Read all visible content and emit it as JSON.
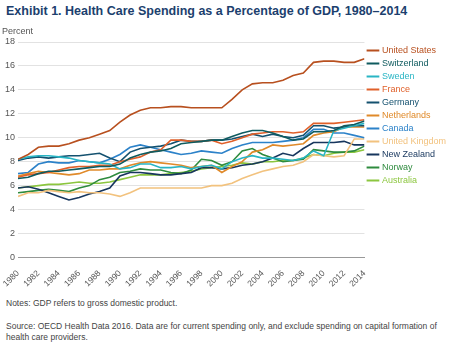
{
  "chart_data": {
    "type": "line",
    "title": "Exhibit 1. Health Care Spending as a Percentage of GDP, 1980–2014",
    "y_label": "Percent",
    "notes": "Notes: GDP refers to gross domestic product.",
    "source": "Source: OECD Health Data 2016. Data are for current spending only, and exclude spending on capital formation of health care providers.",
    "x": [
      1980,
      1981,
      1982,
      1983,
      1984,
      1985,
      1986,
      1987,
      1988,
      1989,
      1990,
      1991,
      1992,
      1993,
      1994,
      1995,
      1996,
      1997,
      1998,
      1999,
      2000,
      2001,
      2002,
      2003,
      2004,
      2005,
      2006,
      2007,
      2008,
      2009,
      2010,
      2011,
      2012,
      2013,
      2014
    ],
    "xlim": [
      1980,
      2014
    ],
    "xticks": [
      1980,
      1982,
      1984,
      1986,
      1988,
      1990,
      1992,
      1994,
      1996,
      1998,
      2000,
      2002,
      2004,
      2006,
      2008,
      2010,
      2012,
      2014
    ],
    "ylim": [
      0,
      18
    ],
    "yticks": [
      0,
      2,
      4,
      6,
      8,
      10,
      12,
      14,
      16,
      18
    ],
    "grid": true,
    "legend": "right",
    "series": [
      {
        "name": "United States",
        "color": "#b8501f",
        "values": [
          8.2,
          8.6,
          9.2,
          9.3,
          9.3,
          9.5,
          9.8,
          10.0,
          10.3,
          10.6,
          11.3,
          11.9,
          12.3,
          12.5,
          12.5,
          12.6,
          12.6,
          12.5,
          12.5,
          12.5,
          12.5,
          13.2,
          14.0,
          14.5,
          14.6,
          14.6,
          14.8,
          15.2,
          15.4,
          16.3,
          16.4,
          16.4,
          16.3,
          16.3,
          16.6
        ]
      },
      {
        "name": "Switzerland",
        "color": "#0f5b5f",
        "values": [
          6.6,
          6.7,
          7.0,
          7.2,
          7.2,
          7.3,
          7.4,
          7.5,
          7.6,
          7.6,
          7.8,
          8.3,
          8.6,
          8.8,
          8.9,
          9.1,
          9.5,
          9.6,
          9.7,
          9.8,
          9.8,
          10.1,
          10.4,
          10.6,
          10.6,
          10.4,
          10.1,
          9.8,
          9.9,
          10.5,
          10.5,
          10.6,
          11.0,
          11.1,
          11.4
        ]
      },
      {
        "name": "Sweden",
        "color": "#29b5c4",
        "values": [
          8.2,
          8.4,
          8.5,
          8.5,
          8.4,
          8.3,
          8.1,
          8.0,
          7.9,
          7.8,
          7.4,
          7.5,
          7.8,
          7.8,
          7.5,
          7.5,
          7.6,
          7.4,
          7.6,
          7.7,
          7.4,
          8.0,
          8.3,
          8.5,
          8.3,
          8.3,
          8.2,
          8.1,
          8.3,
          8.9,
          8.5,
          10.6,
          10.8,
          11.0,
          11.2
        ]
      },
      {
        "name": "France",
        "color": "#e0602a",
        "values": [
          6.7,
          6.9,
          7.0,
          7.1,
          7.3,
          7.5,
          7.6,
          7.6,
          7.7,
          7.7,
          8.0,
          8.2,
          8.4,
          8.8,
          9.0,
          9.8,
          9.8,
          9.7,
          9.7,
          9.8,
          9.5,
          9.7,
          10.0,
          10.3,
          10.4,
          10.5,
          10.5,
          10.4,
          10.5,
          11.2,
          11.2,
          11.2,
          11.3,
          11.4,
          11.5
        ]
      },
      {
        "name": "Germany",
        "color": "#14516f",
        "values": [
          8.1,
          8.3,
          8.4,
          8.3,
          8.4,
          8.5,
          8.5,
          8.6,
          8.7,
          8.3,
          8.0,
          8.8,
          9.1,
          9.2,
          9.3,
          9.5,
          9.8,
          9.7,
          9.7,
          9.8,
          9.8,
          9.9,
          10.1,
          10.3,
          10.1,
          10.3,
          10.1,
          10.0,
          10.2,
          11.0,
          11.0,
          10.8,
          10.9,
          11.0,
          11.0
        ]
      },
      {
        "name": "Netherlands",
        "color": "#e08a2a",
        "values": [
          6.8,
          7.0,
          7.2,
          7.1,
          7.0,
          6.9,
          7.0,
          7.3,
          7.3,
          7.4,
          7.4,
          7.7,
          7.9,
          8.0,
          7.9,
          7.8,
          7.7,
          7.5,
          7.6,
          7.7,
          7.1,
          7.6,
          8.0,
          8.8,
          9.0,
          9.4,
          9.3,
          9.4,
          9.5,
          10.2,
          10.4,
          10.5,
          10.9,
          10.9,
          10.9
        ]
      },
      {
        "name": "Canada",
        "color": "#2c82c9",
        "values": [
          7.0,
          7.1,
          7.8,
          8.0,
          7.9,
          7.9,
          8.1,
          8.0,
          7.9,
          8.2,
          8.6,
          9.2,
          9.4,
          9.2,
          9.0,
          8.8,
          8.6,
          8.7,
          8.9,
          8.8,
          8.7,
          9.1,
          9.4,
          9.6,
          9.6,
          9.6,
          9.7,
          9.8,
          10.0,
          10.7,
          10.7,
          10.4,
          10.4,
          10.2,
          10.0
        ]
      },
      {
        "name": "United Kingdom",
        "color": "#f2c27e",
        "values": [
          5.1,
          5.4,
          5.4,
          5.6,
          5.5,
          5.4,
          5.5,
          5.4,
          5.4,
          5.3,
          5.1,
          5.4,
          5.8,
          5.8,
          5.8,
          5.8,
          5.8,
          5.8,
          5.8,
          6.0,
          6.0,
          6.2,
          6.6,
          6.9,
          7.2,
          7.4,
          7.6,
          7.7,
          8.0,
          8.6,
          8.5,
          8.4,
          8.5,
          9.9,
          9.9
        ]
      },
      {
        "name": "New Zealand",
        "color": "#17365d",
        "values": [
          5.8,
          5.9,
          5.7,
          5.4,
          5.1,
          4.8,
          5.0,
          5.3,
          5.5,
          5.8,
          6.8,
          7.1,
          7.1,
          7.0,
          6.9,
          6.9,
          7.0,
          7.1,
          7.5,
          7.5,
          7.4,
          7.5,
          7.7,
          7.8,
          8.0,
          8.3,
          8.7,
          8.5,
          9.1,
          9.6,
          9.6,
          9.6,
          9.7,
          9.4,
          9.4
        ]
      },
      {
        "name": "Norway",
        "color": "#2e8b3e",
        "values": [
          5.4,
          5.5,
          5.6,
          5.7,
          5.6,
          5.5,
          5.8,
          6.0,
          6.5,
          6.7,
          7.1,
          7.2,
          7.4,
          7.3,
          7.3,
          7.1,
          7.0,
          7.3,
          8.2,
          8.1,
          7.7,
          8.0,
          8.9,
          9.1,
          8.6,
          8.3,
          8.0,
          8.1,
          8.2,
          9.0,
          8.9,
          8.8,
          8.8,
          8.9,
          9.3
        ]
      },
      {
        "name": "Australia",
        "color": "#8cc63f",
        "values": [
          5.8,
          5.9,
          6.0,
          6.1,
          6.1,
          6.2,
          6.3,
          6.2,
          6.2,
          6.3,
          6.5,
          6.7,
          6.9,
          6.9,
          6.9,
          7.0,
          7.1,
          7.2,
          7.4,
          7.5,
          7.6,
          7.7,
          7.9,
          7.8,
          8.0,
          8.0,
          8.1,
          8.1,
          8.3,
          8.6,
          8.5,
          8.7,
          8.8,
          8.8,
          9.0
        ]
      }
    ]
  }
}
